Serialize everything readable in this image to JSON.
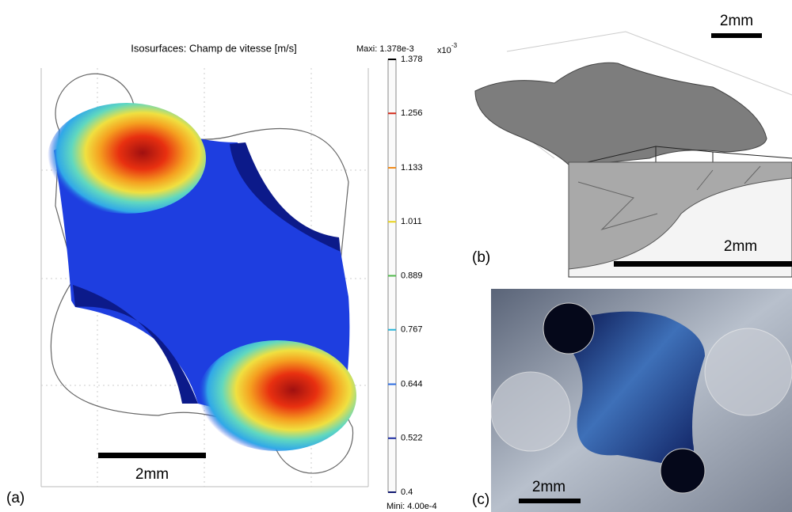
{
  "panels": {
    "a": {
      "label": "(a)",
      "title": "Isosurfaces: Champ de vitesse [m/s]",
      "max_label": "Maxi: 1.378e-3",
      "min_label": "Mini: 4.00e-4",
      "colorbar": {
        "multiplier": "x10",
        "exponent": "-3",
        "lim": [
          0.4,
          1.378
        ],
        "ticks": [
          1.378,
          1.256,
          1.133,
          1.011,
          0.889,
          0.767,
          0.644,
          0.522,
          0.4
        ],
        "tick_colors": [
          "#000000",
          "#d42a1a",
          "#f08a1a",
          "#e8d21a",
          "#4fb84a",
          "#28b4d8",
          "#2a6ae0",
          "#1a2aa0",
          "#101870"
        ]
      },
      "scale_bar": "2mm"
    },
    "b": {
      "label": "(b)",
      "scale_bar_top": "2mm",
      "scale_bar_inset": "2mm"
    },
    "c": {
      "label": "(c)",
      "scale_bar": "2mm"
    }
  }
}
